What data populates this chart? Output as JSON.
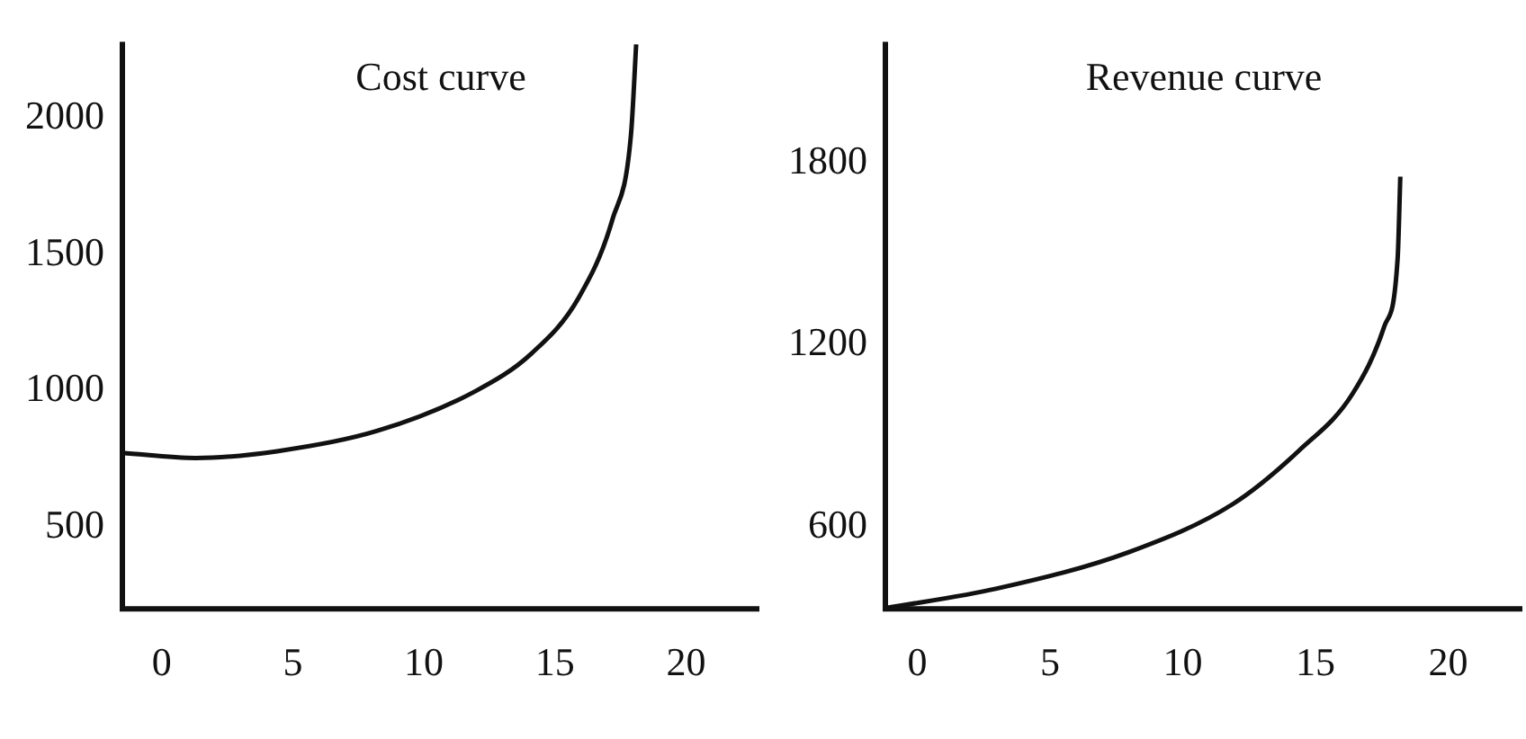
{
  "chart_data": [
    {
      "type": "line",
      "title": "Cost curve",
      "marker": "none",
      "grid": false,
      "legend": false,
      "x": [
        -1.5,
        1.3,
        4.4,
        8.2,
        12,
        14.1,
        15.9,
        17.2,
        17.9,
        18.1
      ],
      "series": [
        {
          "color": "#111111",
          "values": [
            772,
            753,
            778,
            852,
            1000,
            1136,
            1340,
            1630,
            1938,
            2270
          ]
        }
      ],
      "xlim": [
        -1.5,
        22.8
      ],
      "xticks": [
        0,
        5,
        10,
        15,
        20
      ],
      "ylim": [
        200,
        2280
      ],
      "yticks": [
        500,
        1000,
        1500,
        2000
      ]
    },
    {
      "type": "line",
      "title": "Revenue curve",
      "marker": "none",
      "grid": false,
      "legend": false,
      "x": [
        -1.2,
        3,
        8,
        11.9,
        14.4,
        16.4,
        17.6,
        18.1,
        18.2
      ],
      "series": [
        {
          "color": "#111111",
          "values": [
            332,
            397,
            518,
            676,
            853,
            1039,
            1262,
            1486,
            1755
          ]
        }
      ],
      "xlim": [
        -1.2,
        22.8
      ],
      "xticks": [
        0,
        5,
        10,
        15,
        20
      ],
      "ylim": [
        330,
        2200
      ],
      "yticks": [
        600,
        1200,
        1800
      ]
    }
  ]
}
